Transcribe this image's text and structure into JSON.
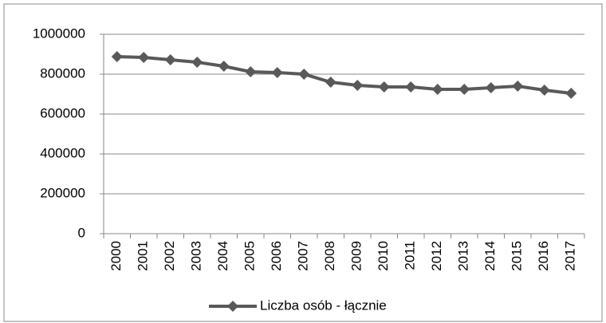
{
  "chart_data": {
    "type": "line",
    "categories": [
      "2000",
      "2001",
      "2002",
      "2003",
      "2004",
      "2005",
      "2006",
      "2007",
      "2008",
      "2009",
      "2010",
      "2011",
      "2012",
      "2013",
      "2014",
      "2015",
      "2016",
      "2017"
    ],
    "series": [
      {
        "name": "Liczba osób - łącznie",
        "color": "#595959",
        "values": [
          888000,
          884000,
          872000,
          860000,
          840000,
          812000,
          808000,
          800000,
          760000,
          744000,
          736000,
          736000,
          724000,
          724000,
          732000,
          740000,
          720000,
          704000
        ]
      }
    ],
    "ylim": [
      0,
      1000000
    ],
    "yticks": [
      0,
      200000,
      400000,
      600000,
      800000,
      1000000
    ],
    "grid": true,
    "legend": "bottom"
  }
}
